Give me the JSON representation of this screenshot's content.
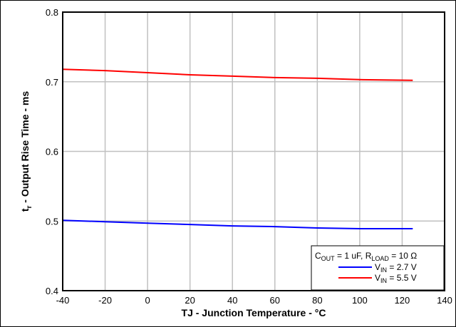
{
  "chart_data": {
    "type": "line",
    "title": "",
    "xlabel": "TJ - Junction Temperature - °C",
    "ylabel": {
      "main": "t",
      "sub": "r",
      "rest": " - Output Rise Time - ms"
    },
    "xlim": [
      -40,
      140
    ],
    "ylim": [
      0.4,
      0.8
    ],
    "xticks": [
      -40,
      -20,
      0,
      20,
      40,
      60,
      80,
      100,
      120,
      140
    ],
    "yticks": [
      0.4,
      0.5,
      0.6,
      0.7,
      0.8
    ],
    "grid": true,
    "legend_position": "bottom-right",
    "legend": {
      "condition": {
        "c": "C",
        "c_sub": "OUT",
        "c_val": " = 1 uF, R",
        "r_sub": "LOAD",
        "r_val": " = 10 Ω"
      }
    },
    "series": [
      {
        "name": "VIN = 2.7 V",
        "label_main": "V",
        "label_sub": "IN",
        "label_rest": " = 2.7 V",
        "color": "#0000ff",
        "x": [
          -40,
          -20,
          0,
          20,
          40,
          60,
          80,
          100,
          125
        ],
        "values": [
          0.501,
          0.499,
          0.497,
          0.495,
          0.493,
          0.492,
          0.49,
          0.489,
          0.489
        ]
      },
      {
        "name": "VIN = 5.5 V",
        "label_main": "V",
        "label_sub": "IN",
        "label_rest": " = 5.5 V",
        "color": "#ff0000",
        "x": [
          -40,
          -20,
          0,
          20,
          40,
          60,
          80,
          100,
          125
        ],
        "values": [
          0.718,
          0.716,
          0.713,
          0.71,
          0.708,
          0.706,
          0.705,
          0.703,
          0.702
        ]
      }
    ]
  }
}
